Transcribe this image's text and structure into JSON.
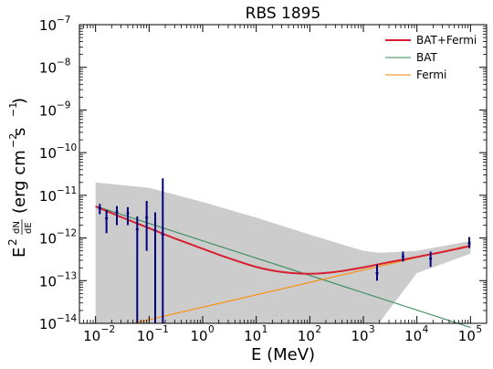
{
  "chart_data": {
    "type": "line",
    "title": "RBS 1895",
    "xlabel": "E (MeV)",
    "ylabel": {
      "prefix": "E",
      "sup": "2",
      "frac_num": "dN",
      "frac_den": "dE",
      "units": "(erg cm",
      "units_exp": "−2",
      "units_mid": " s",
      "units_exp2": "−1",
      "units_end": ")"
    },
    "x_scale": "log",
    "y_scale": "log",
    "xlim": [
      0.005,
      200000
    ],
    "ylim": [
      1e-14,
      1e-07
    ],
    "x_ticks": [
      {
        "base": "10",
        "exp": "−2",
        "value": 0.01
      },
      {
        "base": "10",
        "exp": "−1",
        "value": 0.1
      },
      {
        "base": "10",
        "exp": "0",
        "value": 1
      },
      {
        "base": "10",
        "exp": "1",
        "value": 10
      },
      {
        "base": "10",
        "exp": "2",
        "value": 100
      },
      {
        "base": "10",
        "exp": "3",
        "value": 1000
      },
      {
        "base": "10",
        "exp": "4",
        "value": 10000
      },
      {
        "base": "10",
        "exp": "5",
        "value": 100000
      }
    ],
    "y_ticks": [
      {
        "base": "10",
        "exp": "−14",
        "value": 1e-14
      },
      {
        "base": "10",
        "exp": "−13",
        "value": 1e-13
      },
      {
        "base": "10",
        "exp": "−12",
        "value": 1e-12
      },
      {
        "base": "10",
        "exp": "−11",
        "value": 1e-11
      },
      {
        "base": "10",
        "exp": "−10",
        "value": 1e-10
      },
      {
        "base": "10",
        "exp": "−9",
        "value": 1e-09
      },
      {
        "base": "10",
        "exp": "−8",
        "value": 1e-08
      },
      {
        "base": "10",
        "exp": "−7",
        "value": 1e-07
      }
    ],
    "legend_position": "top-right",
    "grid": false,
    "series": [
      {
        "name": "BAT+Fermi",
        "color": "#d62031",
        "x": [
          0.01,
          0.03,
          0.1,
          0.3,
          1,
          3,
          10,
          30,
          100,
          300,
          1000,
          3000,
          10000,
          30000,
          100000
        ],
        "y": [
          5.5e-12,
          3.1e-12,
          1.7e-12,
          9.8e-13,
          5.6e-13,
          3.4e-13,
          2.1e-13,
          1.6e-13,
          1.45e-13,
          1.6e-13,
          2.05e-13,
          2.7e-13,
          3.6e-13,
          4.7e-13,
          6.5e-13
        ]
      },
      {
        "name": "BAT",
        "color": "#3a8a5a",
        "x": [
          0.01,
          100000
        ],
        "y": [
          5.6e-12,
          8e-15
        ]
      },
      {
        "name": "Fermi",
        "color": "#ff8c00",
        "x": [
          0.05,
          100000
        ],
        "y": [
          1e-14,
          6.8e-13
        ]
      }
    ],
    "confidence_band": {
      "color": "#cccccc",
      "x": [
        0.01,
        0.1,
        1,
        10,
        100,
        1000,
        2000,
        10000,
        100000
      ],
      "upper": [
        2e-11,
        1.5e-11,
        7e-12,
        3e-12,
        1.2e-12,
        5e-13,
        4.5e-13,
        5e-13,
        8.5e-13
      ],
      "lower": [
        1e-14,
        1e-14,
        1e-14,
        1e-14,
        1e-14,
        1e-14,
        1.05e-14,
        1.5e-13,
        4.3e-13
      ]
    },
    "data_points": {
      "color": "#000080",
      "points": [
        {
          "x": 0.012,
          "y": 5e-12,
          "ylo": 3.6e-12,
          "yhi": 6.3e-12
        },
        {
          "x": 0.016,
          "y": 2.9e-12,
          "ylo": 1.3e-12,
          "yhi": 4.5e-12
        },
        {
          "x": 0.025,
          "y": 4e-12,
          "ylo": 2e-12,
          "yhi": 5.6e-12
        },
        {
          "x": 0.04,
          "y": 3.8e-12,
          "ylo": 2e-12,
          "yhi": 5.3e-12
        },
        {
          "x": 0.06,
          "y": 1.6e-12,
          "ylo": 1e-14,
          "yhi": 3.2e-12
        },
        {
          "x": 0.09,
          "y": 3e-12,
          "ylo": 5e-13,
          "yhi": 7.4e-12
        },
        {
          "x": 0.13,
          "y": 1.5e-12,
          "ylo": 1e-14,
          "yhi": 4e-12
        },
        {
          "x": 0.18,
          "y": 1.2e-12,
          "ylo": 1e-14,
          "yhi": 2.5e-11
        },
        {
          "x": 1800,
          "y": 1.5e-13,
          "ylo": 1e-13,
          "yhi": 2.4e-13
        },
        {
          "x": 5500,
          "y": 3.7e-13,
          "ylo": 2.8e-13,
          "yhi": 4.8e-13
        },
        {
          "x": 18000,
          "y": 3.3e-13,
          "ylo": 2.1e-13,
          "yhi": 4.8e-13
        },
        {
          "x": 95000,
          "y": 7.5e-13,
          "ylo": 5.8e-13,
          "yhi": 1.05e-12
        }
      ]
    }
  }
}
